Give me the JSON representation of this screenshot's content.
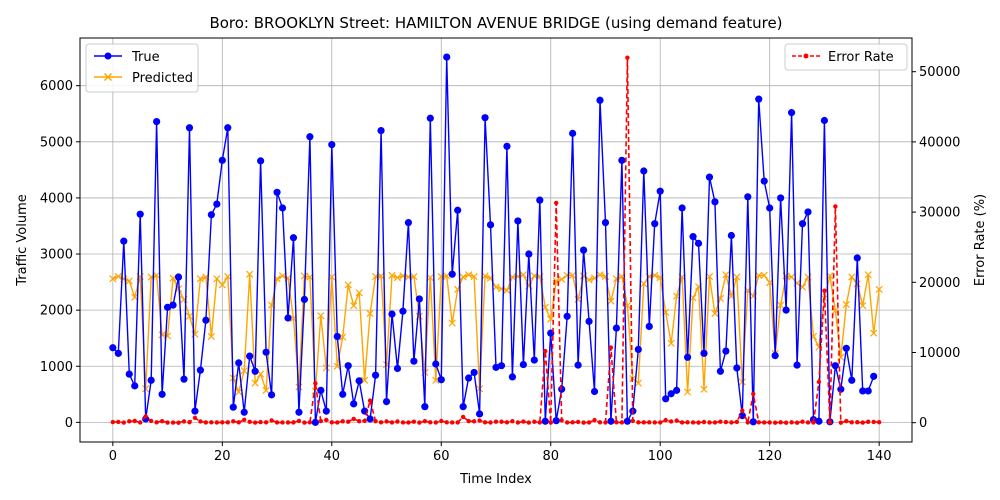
{
  "chart_data": {
    "type": "line",
    "title": "Boro: BROOKLYN Street: HAMILTON AVENUE BRIDGE (using demand feature)",
    "xlabel": "Time Index",
    "ylabel": "Traffic Volume",
    "y2label": "Error Rate (%)",
    "xlim": [
      -6,
      146
    ],
    "ylim": [
      -350,
      6850
    ],
    "y2lim": [
      -2750,
      54800
    ],
    "xticks": [
      0,
      20,
      40,
      60,
      80,
      100,
      120,
      140
    ],
    "yticks": [
      0,
      1000,
      2000,
      3000,
      4000,
      5000,
      6000
    ],
    "y2ticks": [
      0,
      10000,
      20000,
      30000,
      40000,
      50000
    ],
    "grid": true,
    "legend_left_placement": "top-left",
    "legend_right_placement": "top-right",
    "series": [
      {
        "name": "True",
        "axis": "left",
        "color": "#0000ff",
        "values": [
          1330,
          1230,
          3230,
          860,
          650,
          3710,
          60,
          750,
          5360,
          500,
          2050,
          2090,
          2590,
          770,
          5250,
          200,
          930,
          1820,
          3700,
          3890,
          4670,
          5250,
          270,
          1060,
          180,
          1180,
          910,
          4660,
          1250,
          490,
          4100,
          3820,
          1860,
          3290,
          180,
          2190,
          5090,
          0,
          570,
          200,
          4950,
          1530,
          500,
          1010,
          330,
          740,
          200,
          60,
          840,
          5200,
          370,
          1930,
          960,
          1980,
          3560,
          1090,
          2200,
          280,
          5420,
          1040,
          760,
          6510,
          2640,
          3780,
          280,
          790,
          890,
          150,
          5430,
          3520,
          980,
          1010,
          4920,
          810,
          3590,
          1030,
          3000,
          1110,
          3960,
          20,
          1590,
          30,
          590,
          1890,
          5150,
          1020,
          3070,
          1800,
          550,
          5740,
          3560,
          20,
          1680,
          4670,
          20,
          200,
          1300,
          4480,
          1710,
          3540,
          4120,
          420,
          510,
          570,
          3820,
          1160,
          3310,
          3190,
          1230,
          4370,
          3930,
          910,
          1270,
          3330,
          970,
          120,
          4020,
          10,
          5760,
          4300,
          3820,
          1190,
          4000,
          2000,
          5520,
          1020,
          3540,
          3750,
          50,
          20,
          5380,
          10,
          1010,
          590,
          1320,
          750,
          2930,
          560,
          560,
          820
        ]
      },
      {
        "name": "Predicted",
        "axis": "left",
        "color": "#ffa500",
        "values": [
          2560,
          2600,
          2560,
          2520,
          2230,
          2600,
          600,
          2590,
          2620,
          1560,
          1540,
          2570,
          2380,
          2190,
          1890,
          1570,
          2560,
          2590,
          1530,
          2560,
          2450,
          2600,
          790,
          540,
          920,
          2640,
          700,
          860,
          570,
          2090,
          2560,
          2610,
          2570,
          1850,
          630,
          2610,
          2590,
          560,
          1900,
          970,
          2590,
          1000,
          1520,
          2450,
          2080,
          2310,
          750,
          1940,
          2600,
          2610,
          1030,
          2620,
          2580,
          2610,
          2590,
          2600,
          1890,
          890,
          2580,
          750,
          2600,
          2610,
          1770,
          2370,
          2590,
          2630,
          2600,
          600,
          2610,
          2570,
          2410,
          2380,
          2350,
          2590,
          2600,
          2630,
          2430,
          2610,
          2600,
          2050,
          1840,
          2520,
          2550,
          2620,
          2620,
          2190,
          2610,
          2540,
          2570,
          2630,
          2600,
          2160,
          2560,
          2600,
          2080,
          780,
          700,
          2470,
          2600,
          2620,
          2580,
          1960,
          1410,
          2250,
          2590,
          540,
          2220,
          2420,
          590,
          2600,
          1940,
          2210,
          2630,
          2250,
          2590,
          720,
          2350,
          2250,
          2620,
          2620,
          2490,
          1230,
          2090,
          2610,
          2590,
          2480,
          2410,
          2590,
          1530,
          1340,
          2210,
          2610,
          1990,
          1160,
          2100,
          2590,
          2470,
          2080,
          2630,
          1590,
          2370
        ]
      },
      {
        "name": "Error Rate",
        "axis": "right",
        "color": "#ff0000",
        "values": [
          92,
          111,
          21,
          193,
          243,
          30,
          900,
          245,
          51,
          212,
          25,
          23,
          8,
          184,
          64,
          687,
          175,
          42,
          59,
          34,
          48,
          50,
          193,
          49,
          411,
          124,
          23,
          82,
          54,
          326,
          38,
          32,
          38,
          44,
          250,
          19,
          49,
          5600,
          233,
          385,
          48,
          35,
          204,
          143,
          530,
          212,
          275,
          3150,
          210,
          50,
          178,
          36,
          169,
          32,
          27,
          139,
          14,
          218,
          52,
          28,
          242,
          60,
          33,
          37,
          825,
          233,
          192,
          300,
          52,
          27,
          146,
          135,
          52,
          219,
          28,
          155,
          19,
          135,
          34,
          10200,
          16,
          31300,
          332,
          39,
          49,
          115,
          15,
          41,
          367,
          54,
          27,
          10700,
          52,
          44,
          52000,
          250,
          46,
          45,
          54,
          30,
          38,
          367,
          176,
          295,
          32,
          53,
          33,
          24,
          98,
          40,
          41,
          143,
          86,
          32,
          106,
          1720,
          37,
          4100,
          52,
          40,
          37,
          3,
          52,
          5,
          53,
          3,
          138,
          33,
          27,
          5800,
          18800,
          60,
          30800,
          2,
          225,
          56,
          66,
          13,
          133,
          110,
          72
        ]
      }
    ]
  }
}
